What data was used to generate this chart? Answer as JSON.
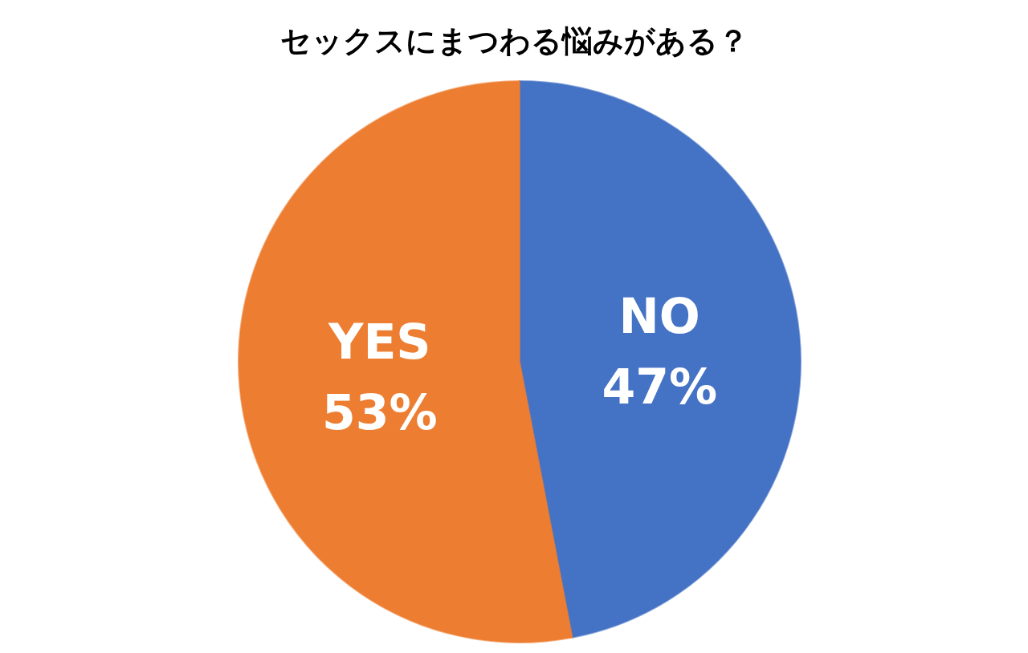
{
  "chart_data": {
    "type": "pie",
    "title": "セックスにまつわる悩みがある？",
    "categories": [
      "NO",
      "YES"
    ],
    "values": [
      47,
      53
    ],
    "colors": [
      "#4472c4",
      "#ed7d31"
    ],
    "value_labels": [
      "47%",
      "53%"
    ]
  }
}
